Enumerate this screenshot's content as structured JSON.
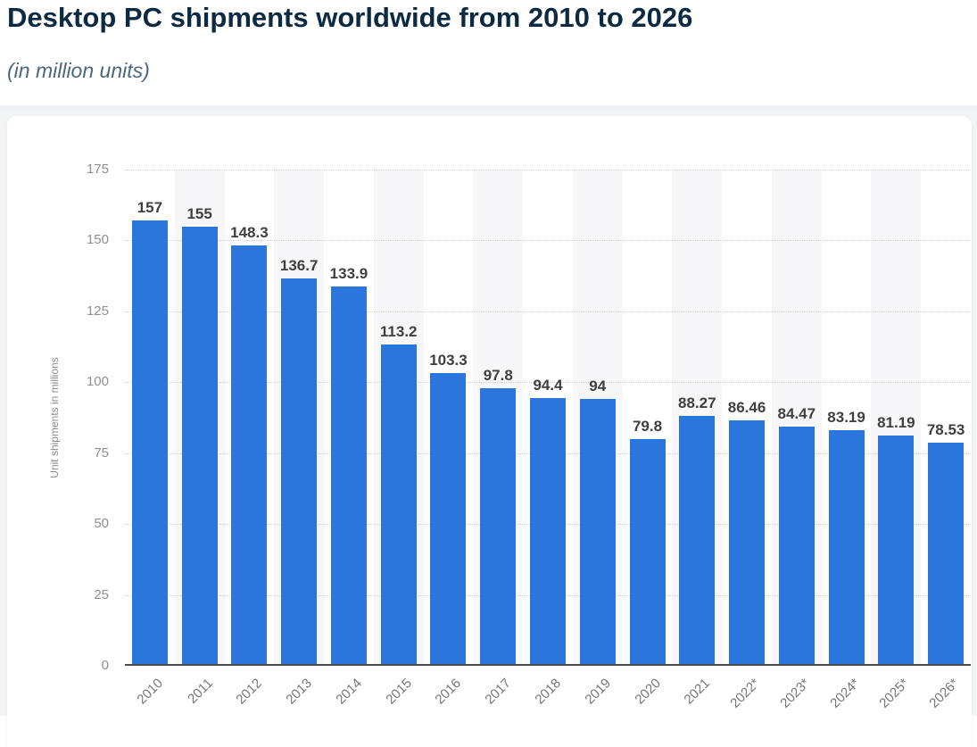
{
  "header": {
    "title": "Desktop PC shipments worldwide from 2010 to 2026",
    "subtitle": "(in million units)"
  },
  "chart_data": {
    "type": "bar",
    "title": "Desktop PC shipments worldwide from 2010 to 2026",
    "subtitle": "(in million units)",
    "categories": [
      "2010",
      "2011",
      "2012",
      "2013",
      "2014",
      "2015",
      "2016",
      "2017",
      "2018",
      "2019",
      "2020",
      "2021",
      "2022*",
      "2023*",
      "2024*",
      "2025*",
      "2026*"
    ],
    "values": [
      157,
      155,
      148.3,
      136.7,
      133.9,
      113.2,
      103.3,
      97.8,
      94.4,
      94,
      79.8,
      88.27,
      86.46,
      84.47,
      83.19,
      81.19,
      78.53
    ],
    "xlabel": "",
    "ylabel": "Unit shipments in millions",
    "ylim": [
      0,
      175
    ],
    "yticks": [
      0,
      25,
      50,
      75,
      100,
      125,
      150,
      175
    ],
    "grid": "horizontal-dotted",
    "legend": "none",
    "bar_color": "#2b76dd",
    "stripe_color": "#f7f7f9",
    "value_label_color": "#3f3f3f",
    "axis_line_color": "#4b4b4b"
  }
}
